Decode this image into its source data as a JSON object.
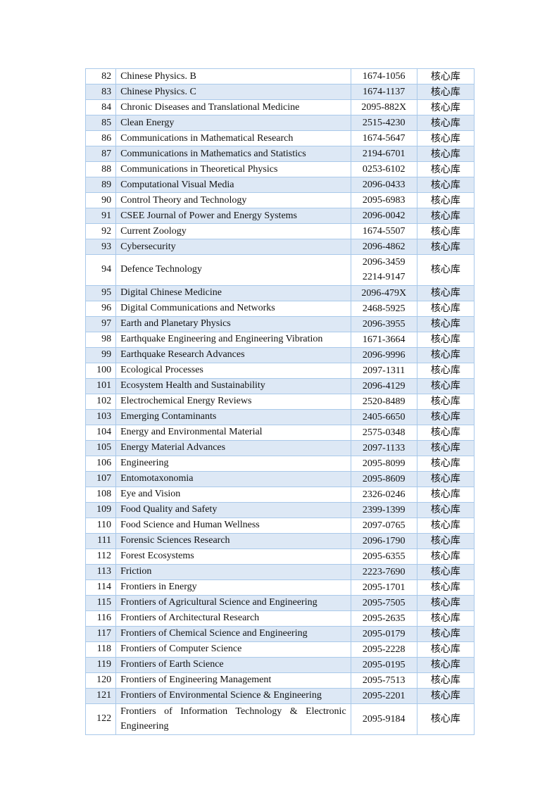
{
  "table": {
    "rows": [
      {
        "no": "82",
        "title": "Chinese Physics. B",
        "issn": [
          "1674-1056"
        ],
        "lib": "核心库"
      },
      {
        "no": "83",
        "title": "Chinese Physics. C",
        "issn": [
          "1674-1137"
        ],
        "lib": "核心库"
      },
      {
        "no": "84",
        "title": "Chronic Diseases and Translational Medicine",
        "issn": [
          "2095-882X"
        ],
        "lib": "核心库"
      },
      {
        "no": "85",
        "title": "Clean Energy",
        "issn": [
          "2515-4230"
        ],
        "lib": "核心库"
      },
      {
        "no": "86",
        "title": "Communications in Mathematical Research",
        "issn": [
          "1674-5647"
        ],
        "lib": "核心库"
      },
      {
        "no": "87",
        "title": "Communications in Mathematics and Statistics",
        "issn": [
          "2194-6701"
        ],
        "lib": "核心库"
      },
      {
        "no": "88",
        "title": "Communications in Theoretical Physics",
        "issn": [
          "0253-6102"
        ],
        "lib": "核心库"
      },
      {
        "no": "89",
        "title": "Computational Visual Media",
        "issn": [
          "2096-0433"
        ],
        "lib": "核心库"
      },
      {
        "no": "90",
        "title": "Control Theory and Technology",
        "issn": [
          "2095-6983"
        ],
        "lib": "核心库"
      },
      {
        "no": "91",
        "title": "CSEE Journal of Power and Energy Systems",
        "issn": [
          "2096-0042"
        ],
        "lib": "核心库"
      },
      {
        "no": "92",
        "title": "Current Zoology",
        "issn": [
          "1674-5507"
        ],
        "lib": "核心库"
      },
      {
        "no": "93",
        "title": "Cybersecurity",
        "issn": [
          "2096-4862"
        ],
        "lib": "核心库"
      },
      {
        "no": "94",
        "title": "Defence Technology",
        "issn": [
          "2096-3459",
          "2214-9147"
        ],
        "lib": "核心库"
      },
      {
        "no": "95",
        "title": "Digital Chinese Medicine",
        "issn": [
          "2096-479X"
        ],
        "lib": "核心库"
      },
      {
        "no": "96",
        "title": "Digital Communications and Networks",
        "issn": [
          "2468-5925"
        ],
        "lib": "核心库"
      },
      {
        "no": "97",
        "title": "Earth and Planetary Physics",
        "issn": [
          "2096-3955"
        ],
        "lib": "核心库"
      },
      {
        "no": "98",
        "title": "Earthquake Engineering and Engineering Vibration",
        "issn": [
          "1671-3664"
        ],
        "lib": "核心库"
      },
      {
        "no": "99",
        "title": "Earthquake Research Advances",
        "issn": [
          "2096-9996"
        ],
        "lib": "核心库"
      },
      {
        "no": "100",
        "title": "Ecological Processes",
        "issn": [
          "2097-1311"
        ],
        "lib": "核心库"
      },
      {
        "no": "101",
        "title": "Ecosystem Health and Sustainability",
        "issn": [
          "2096-4129"
        ],
        "lib": "核心库"
      },
      {
        "no": "102",
        "title": "Electrochemical Energy Reviews",
        "issn": [
          "2520-8489"
        ],
        "lib": "核心库"
      },
      {
        "no": "103",
        "title": "Emerging Contaminants",
        "issn": [
          "2405-6650"
        ],
        "lib": "核心库"
      },
      {
        "no": "104",
        "title": "Energy and Environmental Material",
        "issn": [
          "2575-0348"
        ],
        "lib": "核心库"
      },
      {
        "no": "105",
        "title": "Energy Material Advances",
        "issn": [
          "2097-1133"
        ],
        "lib": "核心库"
      },
      {
        "no": "106",
        "title": "Engineering",
        "issn": [
          "2095-8099"
        ],
        "lib": "核心库"
      },
      {
        "no": "107",
        "title": "Entomotaxonomia",
        "issn": [
          "2095-8609"
        ],
        "lib": "核心库"
      },
      {
        "no": "108",
        "title": "Eye and Vision",
        "issn": [
          "2326-0246"
        ],
        "lib": "核心库"
      },
      {
        "no": "109",
        "title": "Food Quality and Safety",
        "issn": [
          "2399-1399"
        ],
        "lib": "核心库"
      },
      {
        "no": "110",
        "title": "Food Science and Human Wellness",
        "issn": [
          "2097-0765"
        ],
        "lib": "核心库"
      },
      {
        "no": "111",
        "title": "Forensic Sciences Research",
        "issn": [
          "2096-1790"
        ],
        "lib": "核心库"
      },
      {
        "no": "112",
        "title": "Forest Ecosystems",
        "issn": [
          "2095-6355"
        ],
        "lib": "核心库"
      },
      {
        "no": "113",
        "title": "Friction",
        "issn": [
          "2223-7690"
        ],
        "lib": "核心库"
      },
      {
        "no": "114",
        "title": "Frontiers in Energy",
        "issn": [
          "2095-1701"
        ],
        "lib": "核心库"
      },
      {
        "no": "115",
        "title": "Frontiers of Agricultural Science and Engineering",
        "issn": [
          "2095-7505"
        ],
        "lib": "核心库"
      },
      {
        "no": "116",
        "title": "Frontiers of Architectural Research",
        "issn": [
          "2095-2635"
        ],
        "lib": "核心库"
      },
      {
        "no": "117",
        "title": "Frontiers of Chemical Science and Engineering",
        "issn": [
          "2095-0179"
        ],
        "lib": "核心库"
      },
      {
        "no": "118",
        "title": "Frontiers of Computer Science",
        "issn": [
          "2095-2228"
        ],
        "lib": "核心库"
      },
      {
        "no": "119",
        "title": "Frontiers of Earth Science",
        "issn": [
          "2095-0195"
        ],
        "lib": "核心库"
      },
      {
        "no": "120",
        "title": "Frontiers of Engineering Management",
        "issn": [
          "2095-7513"
        ],
        "lib": "核心库"
      },
      {
        "no": "121",
        "title": "Frontiers of Environmental Science & Engineering",
        "issn": [
          "2095-2201"
        ],
        "lib": "核心库"
      },
      {
        "no": "122",
        "title": "Frontiers of Information Technology & Electronic Engineering",
        "issn": [
          "2095-9184"
        ],
        "lib": "核心库"
      }
    ]
  },
  "colors": {
    "stripe": "#dde8f5",
    "border": "#a9c9ea"
  }
}
